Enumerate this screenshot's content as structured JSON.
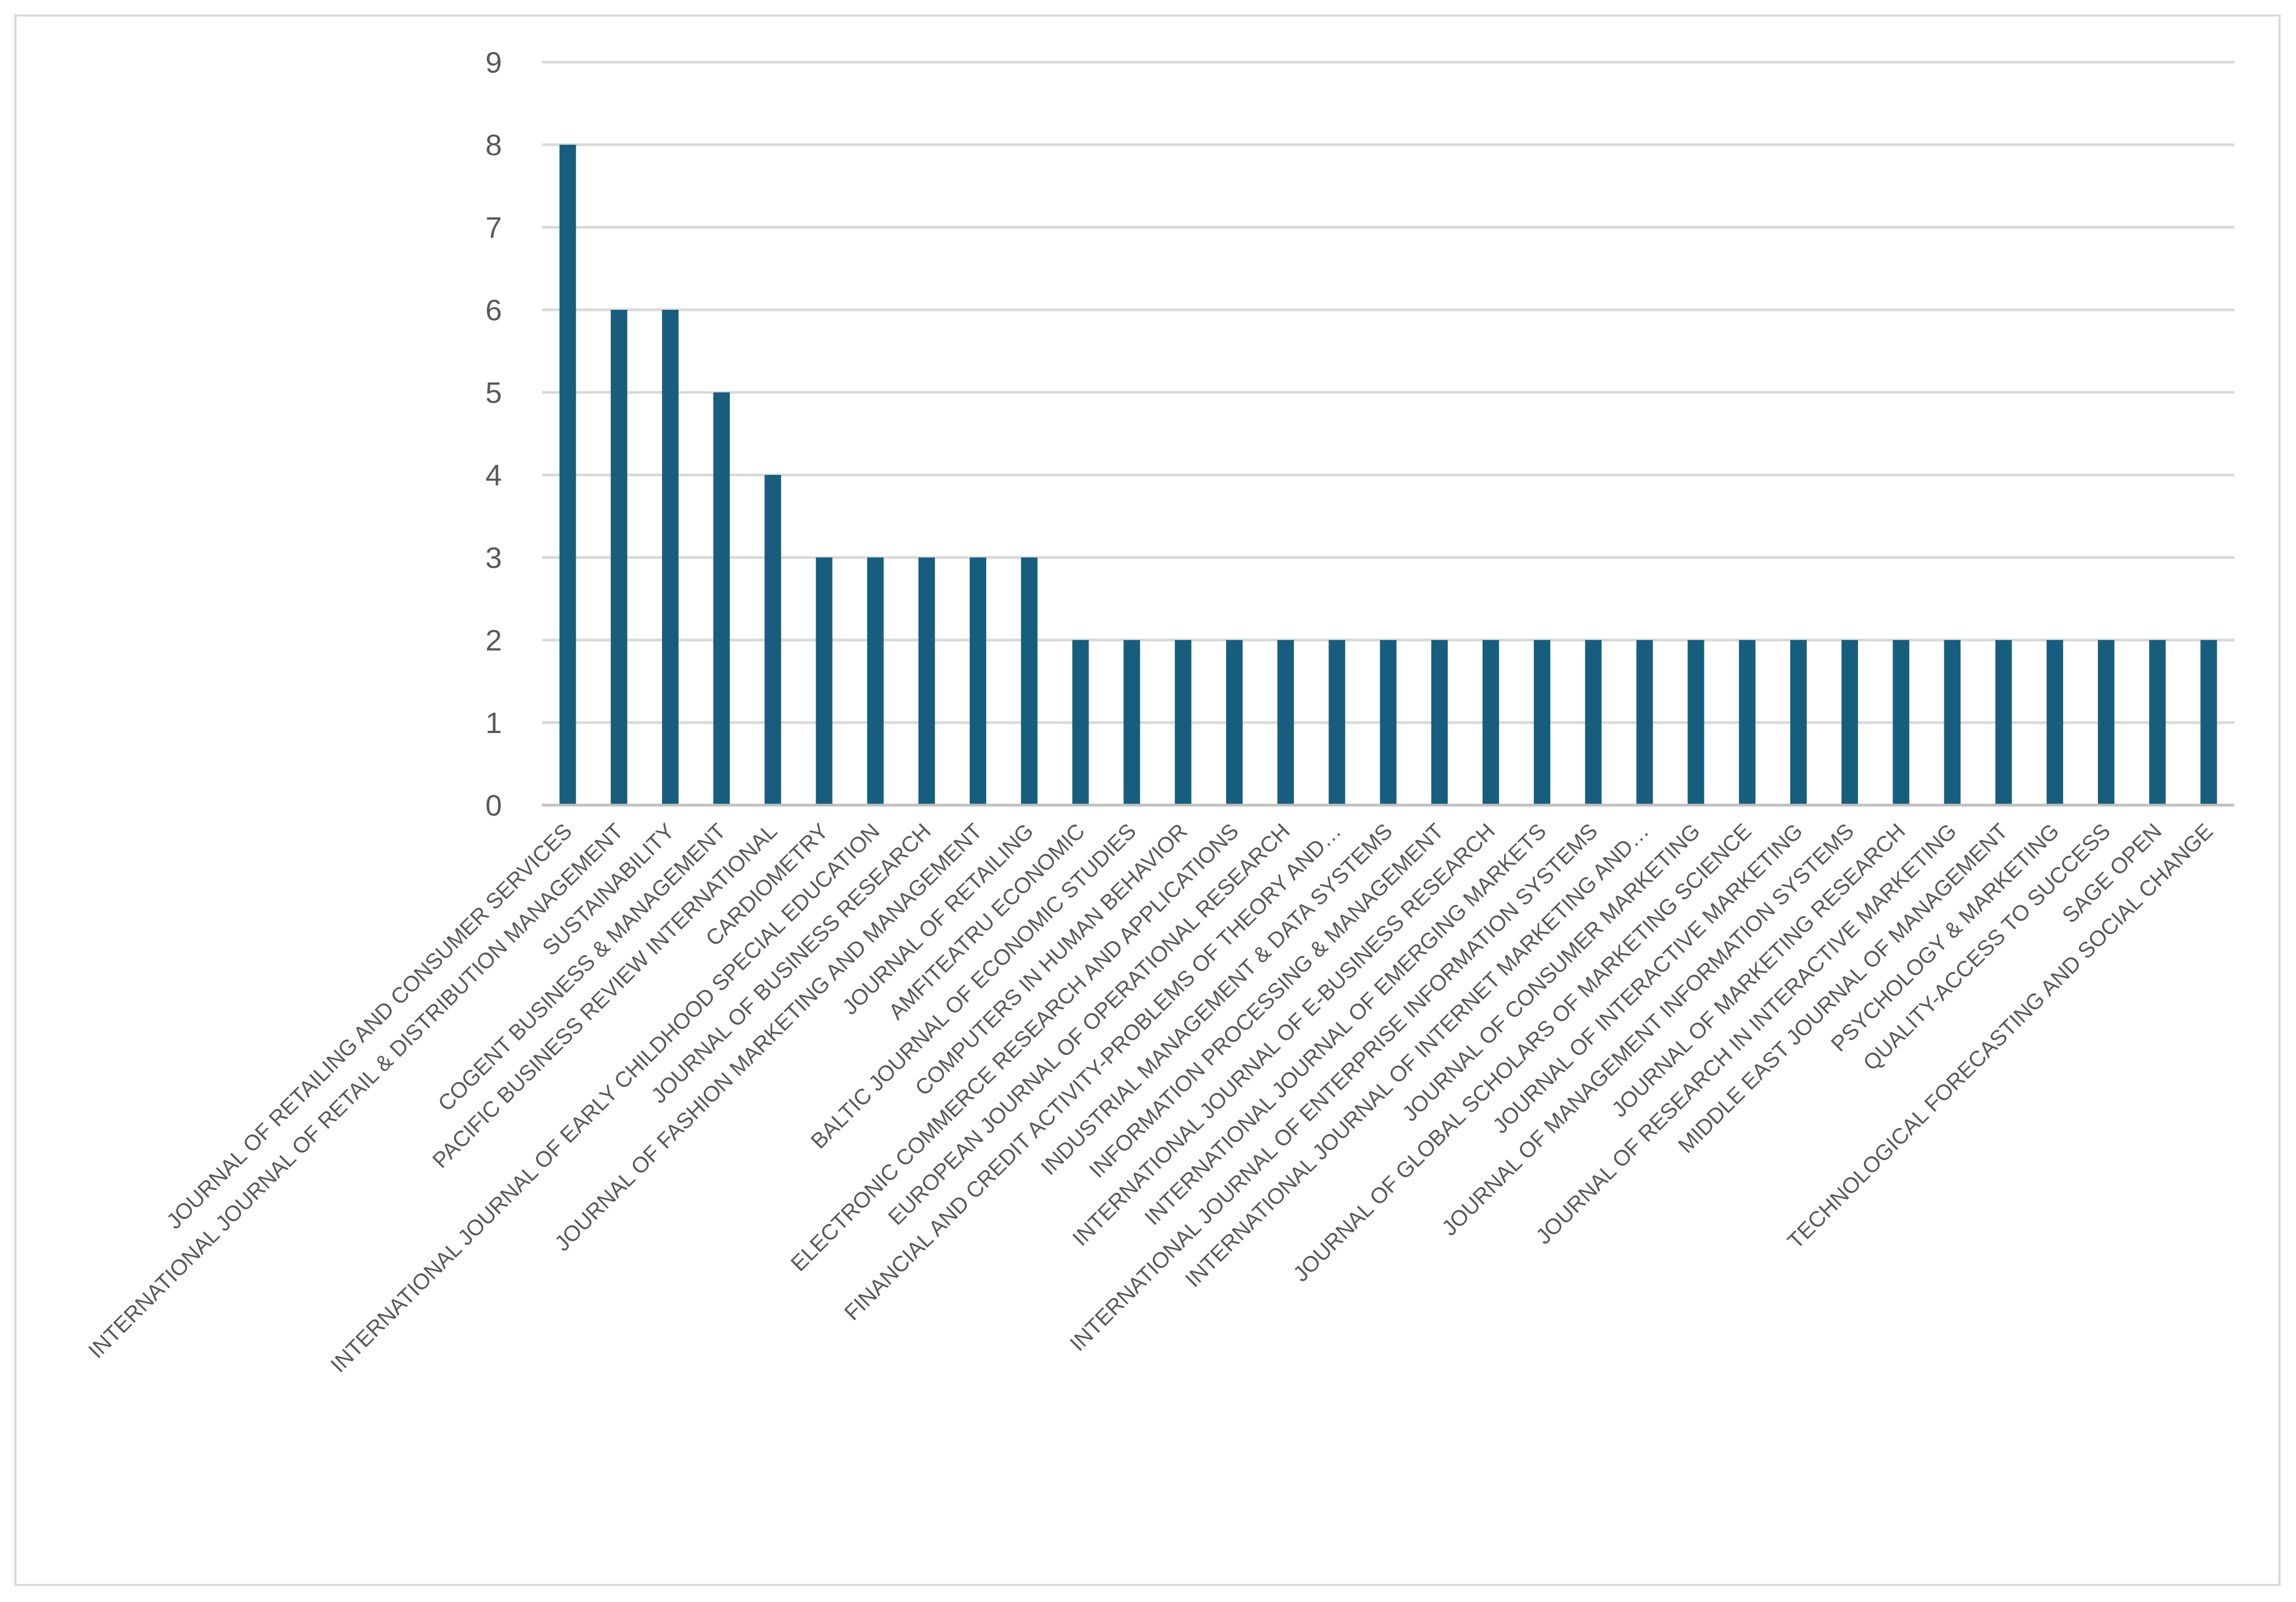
{
  "chart_data": {
    "type": "bar",
    "title": "",
    "xlabel": "",
    "ylabel": "",
    "ylim": [
      0,
      9
    ],
    "yticks": [
      0,
      1,
      2,
      3,
      4,
      5,
      6,
      7,
      8,
      9
    ],
    "grid": true,
    "legend": "none",
    "bar_color": "#175e7e",
    "categories": [
      "JOURNAL OF RETAILING AND CONSUMER SERVICES",
      "INTERNATIONAL JOURNAL OF RETAIL & DISTRIBUTION MANAGEMENT",
      "SUSTAINABILITY",
      "COGENT BUSINESS & MANAGEMENT",
      "PACIFIC BUSINESS REVIEW INTERNATIONAL",
      "CARDIOMETRY",
      "INTERNATIONAL JOURNAL OF EARLY CHILDHOOD SPECIAL EDUCATION",
      "JOURNAL OF BUSINESS RESEARCH",
      "JOURNAL OF FASHION MARKETING AND MANAGEMENT",
      "JOURNAL OF RETAILING",
      "AMFITEATRU ECONOMIC",
      "BALTIC JOURNAL OF ECONOMIC STUDIES",
      "COMPUTERS IN HUMAN BEHAVIOR",
      "ELECTRONIC COMMERCE RESEARCH AND APPLICATIONS",
      "EUROPEAN JOURNAL OF OPERATIONAL RESEARCH",
      "FINANCIAL AND CREDIT ACTIVITY-PROBLEMS OF THEORY AND…",
      "INDUSTRIAL MANAGEMENT & DATA SYSTEMS",
      "INFORMATION PROCESSING & MANAGEMENT",
      "INTERNATIONAL JOURNAL OF E-BUSINESS RESEARCH",
      "INTERNATIONAL JOURNAL OF EMERGING MARKETS",
      "INTERNATIONAL JOURNAL OF ENTERPRISE INFORMATION SYSTEMS",
      "INTERNATIONAL JOURNAL OF INTERNET MARKETING AND…",
      "JOURNAL OF CONSUMER MARKETING",
      "JOURNAL OF GLOBAL SCHOLARS OF MARKETING SCIENCE",
      "JOURNAL OF INTERACTIVE MARKETING",
      "JOURNAL OF MANAGEMENT INFORMATION SYSTEMS",
      "JOURNAL OF MARKETING RESEARCH",
      "JOURNAL OF RESEARCH IN INTERACTIVE MARKETING",
      "MIDDLE EAST JOURNAL OF MANAGEMENT",
      "PSYCHOLOGY & MARKETING",
      "QUALITY-ACCESS TO SUCCESS",
      "SAGE OPEN",
      "TECHNOLOGICAL FORECASTING AND SOCIAL CHANGE"
    ],
    "values": [
      8,
      6,
      6,
      5,
      4,
      3,
      3,
      3,
      3,
      3,
      2,
      2,
      2,
      2,
      2,
      2,
      2,
      2,
      2,
      2,
      2,
      2,
      2,
      2,
      2,
      2,
      2,
      2,
      2,
      2,
      2,
      2,
      2
    ]
  }
}
